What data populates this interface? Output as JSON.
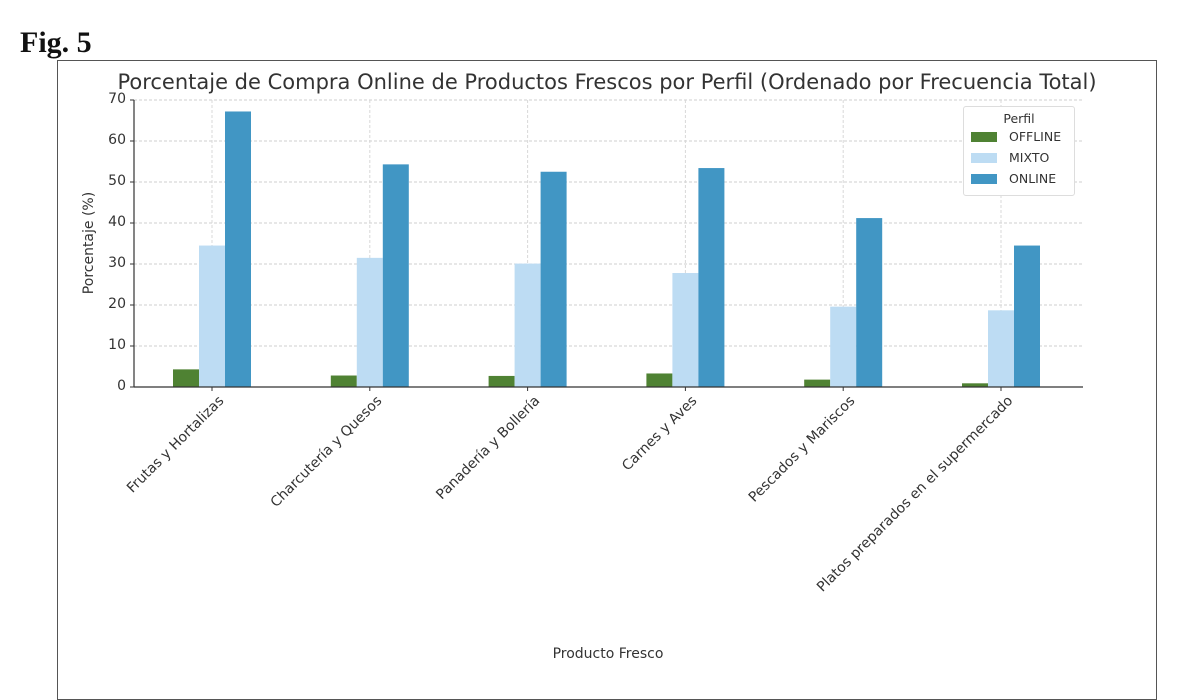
{
  "figure": {
    "label": "Fig. 5"
  },
  "chart_data": {
    "type": "bar",
    "title": "Porcentaje de Compra Online de Productos Frescos por Perfil (Ordenado por Frecuencia Total)",
    "xlabel": "Producto Fresco",
    "ylabel": "Porcentaje (%)",
    "ylim": [
      0,
      70
    ],
    "yticks": [
      0,
      10,
      20,
      30,
      40,
      50,
      60,
      70
    ],
    "grid": true,
    "legend_title": "Perfil",
    "legend_position": "upper right",
    "categories": [
      "Frutas y Hortalizas",
      "Charcutería y Quesos",
      "Panadería y Bollería",
      "Carnes y Aves",
      "Pescados y Mariscos",
      "Platos preparados en el supermercado"
    ],
    "series": [
      {
        "name": "OFFLINE",
        "color": "#4f8233",
        "values": [
          4.3,
          2.8,
          2.7,
          3.3,
          1.8,
          0.9
        ]
      },
      {
        "name": "MIXTO",
        "color": "#bddcf3",
        "values": [
          34.5,
          31.5,
          30.1,
          27.8,
          19.6,
          18.7
        ]
      },
      {
        "name": "ONLINE",
        "color": "#4196c4",
        "values": [
          67.2,
          54.3,
          52.5,
          53.4,
          41.2,
          34.5
        ]
      }
    ]
  }
}
